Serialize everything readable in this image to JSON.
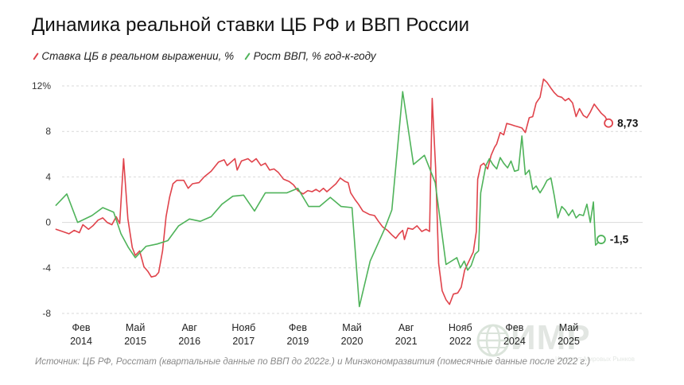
{
  "title": "Динамика реальной ставки ЦБ РФ и ВВП России",
  "legend": [
    {
      "label": "Ставка ЦБ в реальном выражении, %",
      "color": "#e0434b"
    },
    {
      "label": "Рост ВВП, % год-к-году",
      "color": "#4fb35a"
    }
  ],
  "source": "Источник: ЦБ РФ, Росстат (квартальные данные по ВВП до 2022г.) и Минэкономразвития (помесячные данные после 2022 г.)",
  "logo": {
    "text": "ИМР",
    "subtitle": "Институт Мировых Рынков"
  },
  "chart_data": {
    "type": "line",
    "title": "Динамика реальной ставки ЦБ РФ и ВВП России",
    "ylim": [
      -8.5,
      13
    ],
    "y_ticks": [
      {
        "value": 12,
        "label": "12%"
      },
      {
        "value": 8,
        "label": "8"
      },
      {
        "value": 4,
        "label": "4"
      },
      {
        "value": 0,
        "label": "0"
      },
      {
        "value": -4,
        "label": "-4"
      },
      {
        "value": -8,
        "label": "-8"
      }
    ],
    "x_ticks": [
      {
        "t": 2014.08,
        "month": "Фев",
        "year": "2014"
      },
      {
        "t": 2015.33,
        "month": "Май",
        "year": "2015"
      },
      {
        "t": 2016.58,
        "month": "Авг",
        "year": "2016"
      },
      {
        "t": 2017.83,
        "month": "Нояб",
        "year": "2017"
      },
      {
        "t": 2019.08,
        "month": "Фев",
        "year": "2019"
      },
      {
        "t": 2020.33,
        "month": "Май",
        "year": "2020"
      },
      {
        "t": 2021.58,
        "month": "Авг",
        "year": "2021"
      },
      {
        "t": 2022.83,
        "month": "Нояб",
        "year": "2022"
      },
      {
        "t": 2024.08,
        "month": "Фев",
        "year": "2024"
      },
      {
        "t": 2025.33,
        "month": "Май",
        "year": "2025"
      }
    ],
    "grid": "horizontal",
    "series": [
      {
        "name": "Ставка ЦБ в реальном выражении, %",
        "color": "#e0434b",
        "end_label": "8,73",
        "points": [
          [
            2013.5,
            -0.6
          ],
          [
            2013.65,
            -0.8
          ],
          [
            2013.8,
            -1.0
          ],
          [
            2013.92,
            -0.7
          ],
          [
            2014.04,
            -0.9
          ],
          [
            2014.12,
            -0.2
          ],
          [
            2014.25,
            -0.6
          ],
          [
            2014.35,
            -0.3
          ],
          [
            2014.47,
            0.2
          ],
          [
            2014.58,
            0.4
          ],
          [
            2014.68,
            0.0
          ],
          [
            2014.79,
            -0.2
          ],
          [
            2014.89,
            0.5
          ],
          [
            2014.97,
            -0.1
          ],
          [
            2015.06,
            5.6
          ],
          [
            2015.16,
            0.3
          ],
          [
            2015.26,
            -2.2
          ],
          [
            2015.33,
            -2.9
          ],
          [
            2015.43,
            -2.5
          ],
          [
            2015.53,
            -3.9
          ],
          [
            2015.62,
            -4.3
          ],
          [
            2015.7,
            -4.8
          ],
          [
            2015.8,
            -4.7
          ],
          [
            2015.87,
            -4.4
          ],
          [
            2015.96,
            -2.5
          ],
          [
            2016.04,
            0.5
          ],
          [
            2016.12,
            2.2
          ],
          [
            2016.2,
            3.4
          ],
          [
            2016.29,
            3.7
          ],
          [
            2016.45,
            3.7
          ],
          [
            2016.55,
            3.0
          ],
          [
            2016.65,
            3.4
          ],
          [
            2016.8,
            3.5
          ],
          [
            2016.92,
            4.0
          ],
          [
            2017.08,
            4.5
          ],
          [
            2017.25,
            5.3
          ],
          [
            2017.38,
            5.5
          ],
          [
            2017.45,
            5.0
          ],
          [
            2017.54,
            5.3
          ],
          [
            2017.63,
            5.6
          ],
          [
            2017.68,
            4.6
          ],
          [
            2017.78,
            5.4
          ],
          [
            2017.93,
            5.6
          ],
          [
            2018.02,
            5.3
          ],
          [
            2018.12,
            5.6
          ],
          [
            2018.23,
            5.0
          ],
          [
            2018.33,
            5.2
          ],
          [
            2018.43,
            4.6
          ],
          [
            2018.53,
            4.7
          ],
          [
            2018.63,
            4.4
          ],
          [
            2018.75,
            3.8
          ],
          [
            2018.88,
            3.6
          ],
          [
            2018.98,
            3.3
          ],
          [
            2019.08,
            2.8
          ],
          [
            2019.2,
            2.5
          ],
          [
            2019.31,
            2.8
          ],
          [
            2019.41,
            2.7
          ],
          [
            2019.5,
            2.9
          ],
          [
            2019.58,
            2.7
          ],
          [
            2019.67,
            3.0
          ],
          [
            2019.75,
            2.7
          ],
          [
            2019.87,
            3.1
          ],
          [
            2019.96,
            3.4
          ],
          [
            2020.06,
            3.9
          ],
          [
            2020.17,
            3.6
          ],
          [
            2020.24,
            3.5
          ],
          [
            2020.3,
            2.6
          ],
          [
            2020.4,
            2.0
          ],
          [
            2020.48,
            1.6
          ],
          [
            2020.58,
            1.0
          ],
          [
            2020.73,
            0.7
          ],
          [
            2020.85,
            0.6
          ],
          [
            2020.94,
            0.1
          ],
          [
            2021.04,
            -0.4
          ],
          [
            2021.15,
            -0.7
          ],
          [
            2021.25,
            -1.1
          ],
          [
            2021.34,
            -1.4
          ],
          [
            2021.42,
            -1.0
          ],
          [
            2021.5,
            -0.7
          ],
          [
            2021.54,
            -1.5
          ],
          [
            2021.62,
            -0.5
          ],
          [
            2021.73,
            -0.6
          ],
          [
            2021.83,
            -0.3
          ],
          [
            2021.94,
            -0.8
          ],
          [
            2022.04,
            -0.6
          ],
          [
            2022.12,
            -0.8
          ],
          [
            2022.18,
            10.9
          ],
          [
            2022.26,
            4.8
          ],
          [
            2022.33,
            -3.6
          ],
          [
            2022.41,
            -6.0
          ],
          [
            2022.5,
            -6.8
          ],
          [
            2022.58,
            -7.2
          ],
          [
            2022.67,
            -6.3
          ],
          [
            2022.77,
            -6.2
          ],
          [
            2022.85,
            -5.7
          ],
          [
            2022.93,
            -4.2
          ],
          [
            2023.03,
            -3.4
          ],
          [
            2023.13,
            -2.6
          ],
          [
            2023.2,
            -0.8
          ],
          [
            2023.23,
            3.8
          ],
          [
            2023.3,
            5.0
          ],
          [
            2023.37,
            5.2
          ],
          [
            2023.46,
            4.7
          ],
          [
            2023.54,
            5.9
          ],
          [
            2023.62,
            6.6
          ],
          [
            2023.67,
            6.9
          ],
          [
            2023.75,
            7.9
          ],
          [
            2023.83,
            7.7
          ],
          [
            2023.9,
            8.7
          ],
          [
            2024.0,
            8.6
          ],
          [
            2024.08,
            8.5
          ],
          [
            2024.17,
            8.4
          ],
          [
            2024.25,
            8.3
          ],
          [
            2024.33,
            7.9
          ],
          [
            2024.42,
            9.2
          ],
          [
            2024.5,
            9.3
          ],
          [
            2024.58,
            10.5
          ],
          [
            2024.67,
            11.0
          ],
          [
            2024.75,
            12.6
          ],
          [
            2024.83,
            12.3
          ],
          [
            2024.92,
            11.8
          ],
          [
            2025.0,
            11.4
          ],
          [
            2025.08,
            11.1
          ],
          [
            2025.17,
            11.0
          ],
          [
            2025.25,
            10.7
          ],
          [
            2025.33,
            10.9
          ],
          [
            2025.42,
            10.5
          ],
          [
            2025.5,
            9.3
          ],
          [
            2025.58,
            10.0
          ],
          [
            2025.67,
            9.4
          ],
          [
            2025.75,
            9.2
          ],
          [
            2025.83,
            9.7
          ],
          [
            2025.92,
            10.4
          ],
          [
            2026.0,
            10.0
          ],
          [
            2026.08,
            9.6
          ],
          [
            2026.17,
            9.3
          ],
          [
            2026.25,
            8.73
          ]
        ]
      },
      {
        "name": "Рост ВВП, % год-к-году",
        "color": "#4fb35a",
        "end_label": "-1,5",
        "points": [
          [
            2013.5,
            1.5
          ],
          [
            2013.75,
            2.5
          ],
          [
            2014.0,
            0.0
          ],
          [
            2014.33,
            0.6
          ],
          [
            2014.58,
            1.3
          ],
          [
            2014.83,
            0.9
          ],
          [
            2015.0,
            -1.0
          ],
          [
            2015.17,
            -2.2
          ],
          [
            2015.33,
            -3.1
          ],
          [
            2015.58,
            -2.1
          ],
          [
            2015.83,
            -1.9
          ],
          [
            2016.08,
            -1.6
          ],
          [
            2016.33,
            -0.3
          ],
          [
            2016.58,
            0.3
          ],
          [
            2016.83,
            0.1
          ],
          [
            2017.08,
            0.5
          ],
          [
            2017.33,
            1.6
          ],
          [
            2017.58,
            2.3
          ],
          [
            2017.83,
            2.4
          ],
          [
            2018.08,
            1.0
          ],
          [
            2018.33,
            2.6
          ],
          [
            2018.58,
            2.6
          ],
          [
            2018.83,
            2.6
          ],
          [
            2019.08,
            3.0
          ],
          [
            2019.33,
            1.4
          ],
          [
            2019.58,
            1.4
          ],
          [
            2019.83,
            2.2
          ],
          [
            2020.08,
            1.4
          ],
          [
            2020.33,
            1.3
          ],
          [
            2020.5,
            -7.4
          ],
          [
            2020.75,
            -3.4
          ],
          [
            2021.08,
            -0.6
          ],
          [
            2021.25,
            1.1
          ],
          [
            2021.5,
            11.5
          ],
          [
            2021.75,
            5.1
          ],
          [
            2022.0,
            5.9
          ],
          [
            2022.25,
            3.5
          ],
          [
            2022.5,
            -3.7
          ],
          [
            2022.75,
            -3.1
          ],
          [
            2022.83,
            -4.0
          ],
          [
            2022.92,
            -3.4
          ],
          [
            2023.0,
            -4.2
          ],
          [
            2023.08,
            -3.8
          ],
          [
            2023.17,
            -2.8
          ],
          [
            2023.25,
            -2.5
          ],
          [
            2023.3,
            2.6
          ],
          [
            2023.42,
            5.0
          ],
          [
            2023.5,
            5.6
          ],
          [
            2023.58,
            5.1
          ],
          [
            2023.67,
            4.7
          ],
          [
            2023.75,
            5.7
          ],
          [
            2023.83,
            5.2
          ],
          [
            2023.92,
            4.8
          ],
          [
            2024.0,
            5.4
          ],
          [
            2024.08,
            4.5
          ],
          [
            2024.17,
            4.6
          ],
          [
            2024.25,
            7.6
          ],
          [
            2024.33,
            4.2
          ],
          [
            2024.42,
            4.6
          ],
          [
            2024.5,
            2.9
          ],
          [
            2024.58,
            3.2
          ],
          [
            2024.67,
            2.6
          ],
          [
            2024.75,
            3.1
          ],
          [
            2024.83,
            3.7
          ],
          [
            2024.92,
            3.9
          ],
          [
            2025.0,
            2.3
          ],
          [
            2025.08,
            0.4
          ],
          [
            2025.17,
            1.4
          ],
          [
            2025.25,
            1.1
          ],
          [
            2025.33,
            0.6
          ],
          [
            2025.42,
            1.1
          ],
          [
            2025.5,
            0.4
          ],
          [
            2025.58,
            0.7
          ],
          [
            2025.67,
            0.6
          ],
          [
            2025.75,
            1.6
          ],
          [
            2025.83,
            0.0
          ],
          [
            2025.9,
            1.8
          ],
          [
            2025.95,
            -2.0
          ],
          [
            2026.08,
            -1.5
          ]
        ]
      }
    ]
  }
}
